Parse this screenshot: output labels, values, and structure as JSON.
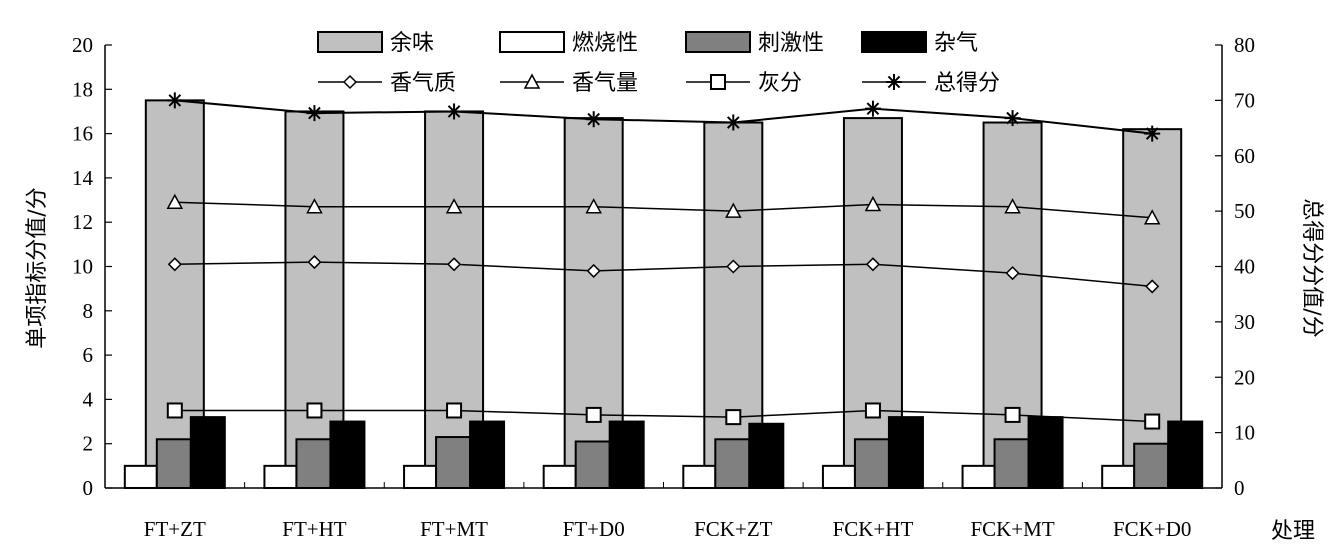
{
  "chart_data": {
    "type": "bar",
    "title": "",
    "xlabel": "处理",
    "ylabel": "单项指标分值/分",
    "y2label": "总得分分值/分",
    "ylim": [
      0,
      20
    ],
    "y2lim": [
      0,
      80
    ],
    "yticks": [
      "0",
      "2",
      "4",
      "6",
      "8",
      "10",
      "12",
      "14",
      "16",
      "18",
      "20"
    ],
    "y2ticks": [
      "0",
      "10",
      "20",
      "30",
      "40",
      "50",
      "60",
      "70",
      "80"
    ],
    "categories": [
      "FT+ZT",
      "FT+HT",
      "FT+MT",
      "FT+D0",
      "FCK+ZT",
      "FCK+HT",
      "FCK+MT",
      "FCK+D0"
    ],
    "bar_series": [
      {
        "name": "燃烧性",
        "color": "#ffffff",
        "values": [
          1.0,
          1.0,
          1.0,
          1.0,
          1.0,
          1.0,
          1.0,
          1.0
        ]
      },
      {
        "name": "余味",
        "color": "#c0c0c0",
        "values": [
          17.5,
          17.0,
          17.0,
          16.7,
          16.5,
          16.7,
          16.5,
          16.2
        ]
      },
      {
        "name": "刺激性",
        "color": "#808080",
        "values": [
          2.2,
          2.2,
          2.3,
          2.1,
          2.2,
          2.2,
          2.2,
          2.0
        ]
      },
      {
        "name": "杂气",
        "color": "#000000",
        "values": [
          3.2,
          3.0,
          3.0,
          3.0,
          2.9,
          3.2,
          3.2,
          3.0
        ]
      }
    ],
    "line_series": [
      {
        "name": "香气质",
        "marker": "diamond",
        "axis": "left",
        "values": [
          10.1,
          10.2,
          10.1,
          9.8,
          10.0,
          10.1,
          9.7,
          9.1
        ]
      },
      {
        "name": "香气量",
        "marker": "triangle",
        "axis": "left",
        "values": [
          12.9,
          12.7,
          12.7,
          12.7,
          12.5,
          12.8,
          12.7,
          12.2
        ]
      },
      {
        "name": "灰分",
        "marker": "square",
        "axis": "left",
        "values": [
          3.5,
          3.5,
          3.5,
          3.3,
          3.2,
          3.5,
          3.3,
          3.0
        ]
      },
      {
        "name": "总得分",
        "marker": "star",
        "axis": "right",
        "values": [
          70.0,
          67.7,
          68.0,
          66.6,
          66.0,
          68.5,
          66.8,
          64.0
        ]
      }
    ],
    "legend": {
      "row1": [
        "余味",
        "燃烧性",
        "刺激性",
        "杂气"
      ],
      "row2": [
        "香气质",
        "香气量",
        "灰分",
        "总得分"
      ],
      "placement": "top-center"
    },
    "grid": false
  }
}
